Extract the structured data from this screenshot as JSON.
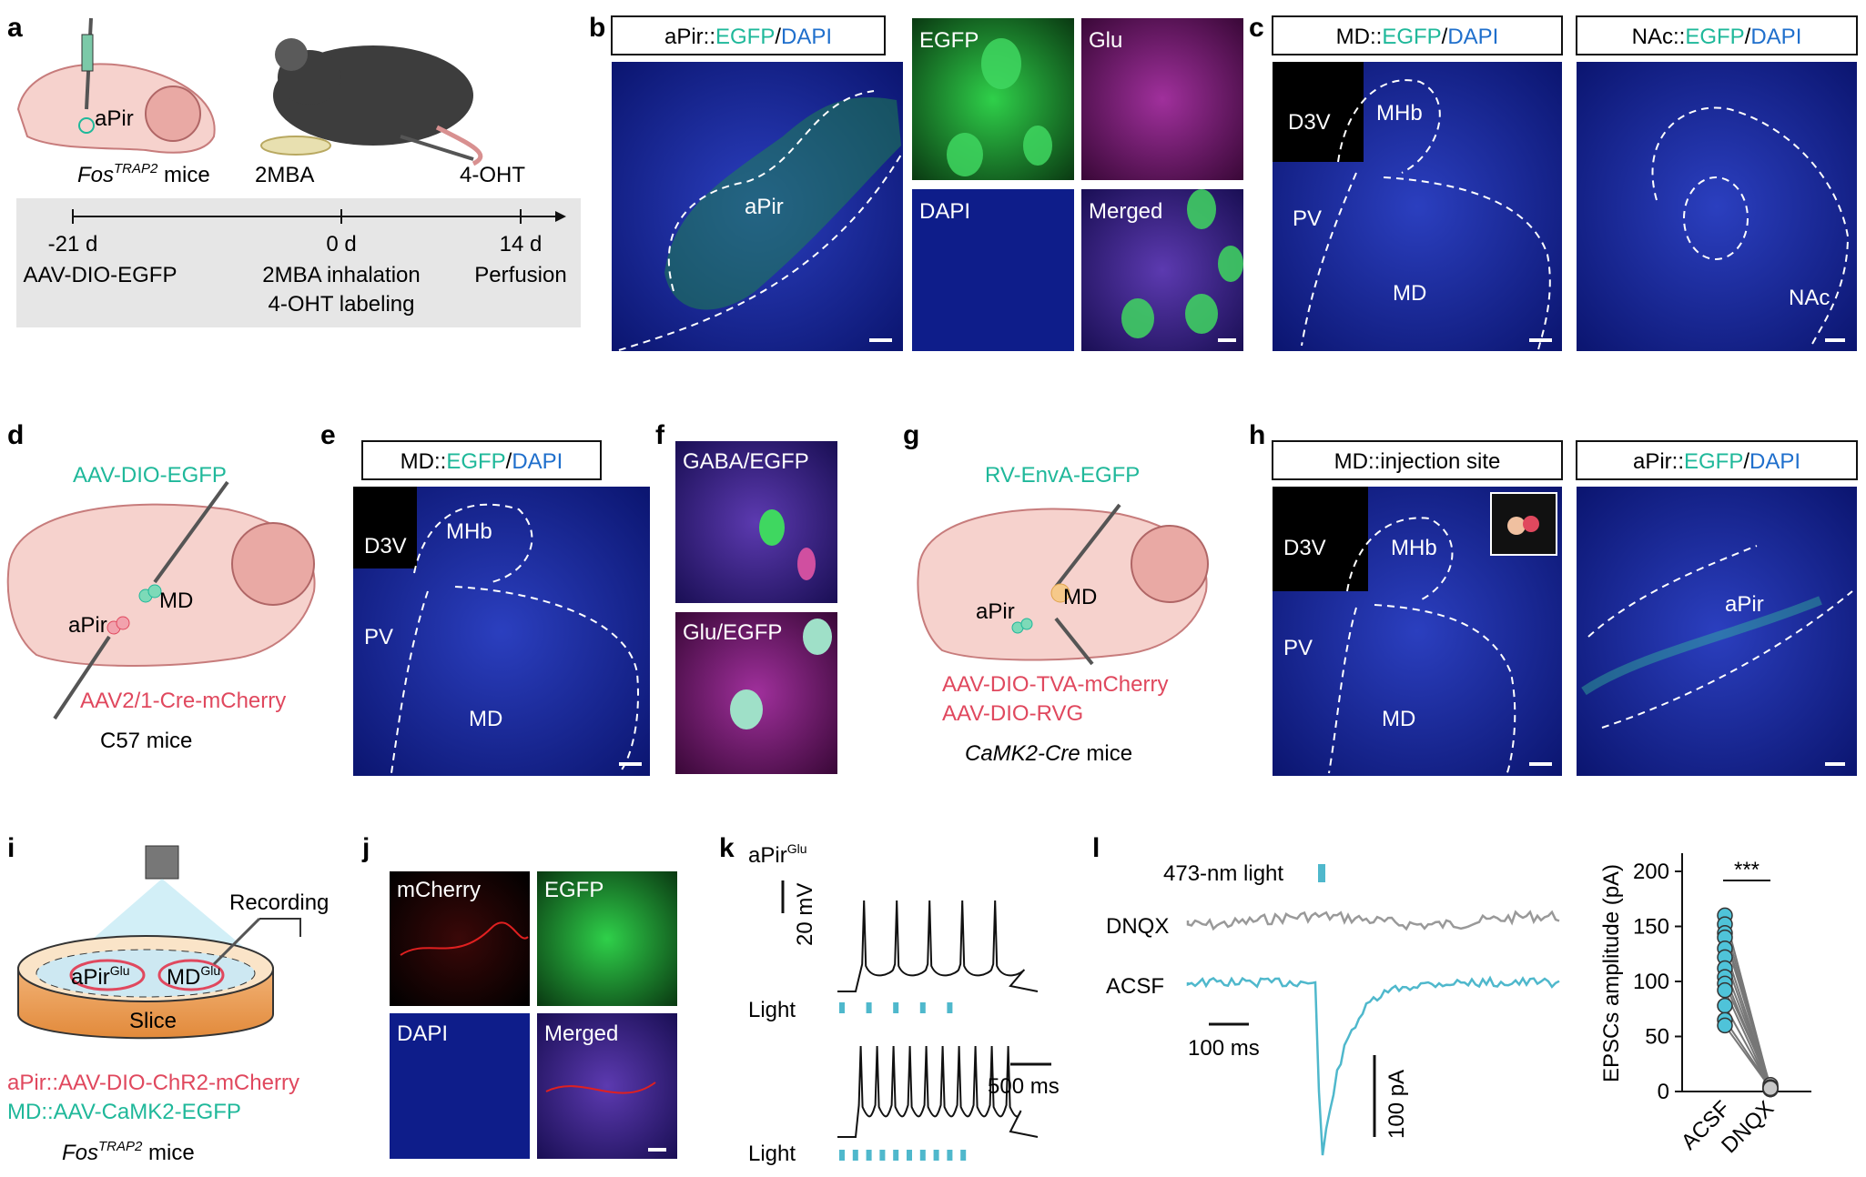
{
  "panels": {
    "a": {
      "letter": "a",
      "target": "aPir",
      "mouse_line": "Fos",
      "mouse_line_sup": "TRAP2",
      "mouse_suffix": " mice",
      "odor": "2MBA",
      "drug": "4-OHT",
      "timeline": [
        {
          "time": "-21 d",
          "event": "AAV-DIO-EGFP",
          "event2": ""
        },
        {
          "time": "0 d",
          "event": "2MBA inhalation",
          "event2": "4-OHT labeling"
        },
        {
          "time": "14 d",
          "event": "Perfusion",
          "event2": ""
        }
      ]
    },
    "b": {
      "letter": "b",
      "header_a": "aPir::",
      "header_b": "EGFP",
      "header_c": "/",
      "header_d": "DAPI",
      "region": "aPir",
      "tiles": [
        "EGFP",
        "Glu",
        "DAPI",
        "Merged"
      ]
    },
    "c": {
      "letter": "c",
      "left_header_a": "MD::",
      "left_header_b": "EGFP",
      "left_header_c": "/",
      "left_header_d": "DAPI",
      "right_header_a": "NAc::",
      "right_header_b": "EGFP",
      "right_header_c": "/",
      "right_header_d": "DAPI",
      "regions_left": [
        "D3V",
        "MHb",
        "PV",
        "MD"
      ],
      "region_right": "NAc"
    },
    "d": {
      "letter": "d",
      "virus_top": "AAV-DIO-EGFP",
      "site_a": "aPir",
      "site_b": "MD",
      "virus_bottom": "AAV2/1-Cre-mCherry",
      "mice": "C57 mice"
    },
    "e": {
      "letter": "e",
      "header_a": "MD::",
      "header_b": "EGFP",
      "header_c": "/",
      "header_d": "DAPI",
      "regions": [
        "D3V",
        "MHb",
        "PV",
        "MD"
      ]
    },
    "f": {
      "letter": "f",
      "top": "GABA/EGFP",
      "bottom": "Glu/EGFP"
    },
    "g": {
      "letter": "g",
      "virus_top": "RV-EnvA-EGFP",
      "site_a": "aPir",
      "site_b": "MD",
      "virus_bottom_1": "AAV-DIO-TVA-mCherry",
      "virus_bottom_2": "AAV-DIO-RVG",
      "mice_italic": "CaMK2-Cre",
      "mice_suffix": " mice"
    },
    "h": {
      "letter": "h",
      "left_header": "MD::injection site",
      "right_header_a": "aPir::",
      "right_header_b": "EGFP",
      "right_header_c": "/",
      "right_header_d": "DAPI",
      "regions_left": [
        "D3V",
        "MHb",
        "PV",
        "MD"
      ],
      "region_right": "aPir"
    },
    "i": {
      "letter": "i",
      "recording": "Recording",
      "pre": "aPir",
      "pre_sup": "Glu",
      "post": "MD",
      "post_sup": "Glu",
      "slice": "Slice",
      "virus_1": "aPir::AAV-DIO-ChR2-mCherry",
      "virus_2": "MD::AAV-CaMK2-EGFP",
      "mouse_line": "Fos",
      "mouse_line_sup": "TRAP2",
      "mouse_suffix": " mice"
    },
    "j": {
      "letter": "j",
      "tiles": [
        "mCherry",
        "EGFP",
        "DAPI",
        "Merged"
      ]
    },
    "k": {
      "letter": "k",
      "cell": "aPir",
      "cell_sup": "Glu",
      "v_scale": "20 mV",
      "t_scale": "500 ms",
      "light": "Light"
    },
    "l": {
      "letter": "l",
      "light": "473-nm light",
      "trace_1": "DNQX",
      "trace_2": "ACSF",
      "t_scale": "100 ms",
      "i_scale": "100 pA",
      "significance": "***"
    }
  },
  "chart_data": {
    "type": "scatter",
    "title": "",
    "xlabel": "",
    "ylabel": "EPSCs amplitude (pA)",
    "categories": [
      "ACSF",
      "DNQX"
    ],
    "ylim": [
      0,
      200
    ],
    "yticks": [
      0,
      50,
      100,
      150,
      200
    ],
    "paired_values": [
      [
        160,
        3
      ],
      [
        152,
        2
      ],
      [
        144,
        4
      ],
      [
        140,
        5
      ],
      [
        130,
        3
      ],
      [
        122,
        2
      ],
      [
        112,
        4
      ],
      [
        104,
        3
      ],
      [
        98,
        6
      ],
      [
        92,
        2
      ],
      [
        78,
        3
      ],
      [
        65,
        4
      ],
      [
        60,
        3
      ]
    ],
    "significance": "***",
    "colors": {
      "acsf": "#4fc3d9",
      "dnqx": "#c8c8c8"
    }
  },
  "colors": {
    "egfp": "#1fb89a",
    "dapi": "#1f6fcc",
    "mcherry": "#e0485e",
    "trace_gray": "#999999",
    "trace_cyan": "#4fb8cc"
  }
}
